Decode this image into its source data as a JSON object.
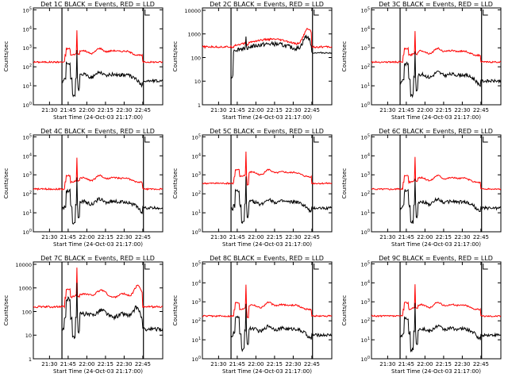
{
  "colors": {
    "events": "#000000",
    "lld": "#ff0000",
    "axes": "#000000",
    "background": "#ffffff"
  },
  "xticks": [
    "21:30",
    "21:45",
    "22:00",
    "22:15",
    "22:30",
    "22:45"
  ],
  "xlabel": "Start Time (24-Oct-03 21:17:00)",
  "ylabel": "Counts/sec",
  "x_markers_minutes": [
    23.0,
    88.5
  ],
  "chart_data": [
    {
      "type": "line",
      "title": "Det 1C BLACK = Events, RED = LLD",
      "yticks": [
        "10^0",
        "10^1",
        "10^2",
        "10^3",
        "10^4",
        "10^5"
      ],
      "ylim_log10": [
        0,
        5.1
      ],
      "profile": "flare",
      "series": [
        {
          "name": "Events",
          "color": "#000000"
        },
        {
          "name": "LLD",
          "color": "#ff0000"
        }
      ]
    },
    {
      "type": "line",
      "title": "Det 2C BLACK = Events, RED = LLD",
      "yticks": [
        "1",
        "10",
        "100",
        "1000",
        "10000"
      ],
      "ylim_log10": [
        0,
        4.1
      ],
      "profile": "det2",
      "series": [
        {
          "name": "Events",
          "color": "#000000"
        },
        {
          "name": "LLD",
          "color": "#ff0000"
        }
      ]
    },
    {
      "type": "line",
      "title": "Det 3C BLACK = Events, RED = LLD",
      "yticks": [
        "10^0",
        "10^1",
        "10^2",
        "10^3",
        "10^4",
        "10^5"
      ],
      "ylim_log10": [
        0,
        5.1
      ],
      "profile": "flare",
      "series": [
        {
          "name": "Events",
          "color": "#000000"
        },
        {
          "name": "LLD",
          "color": "#ff0000"
        }
      ]
    },
    {
      "type": "line",
      "title": "Det 4C BLACK = Events, RED = LLD",
      "yticks": [
        "10^0",
        "10^1",
        "10^2",
        "10^3",
        "10^4",
        "10^5"
      ],
      "ylim_log10": [
        0,
        5.1
      ],
      "profile": "flare",
      "series": [
        {
          "name": "Events",
          "color": "#000000"
        },
        {
          "name": "LLD",
          "color": "#ff0000"
        }
      ]
    },
    {
      "type": "line",
      "title": "Det 5C BLACK = Events, RED = LLD",
      "yticks": [
        "10^0",
        "10^1",
        "10^2",
        "10^3",
        "10^4",
        "10^5"
      ],
      "ylim_log10": [
        0,
        5.1
      ],
      "profile": "det5",
      "series": [
        {
          "name": "Events",
          "color": "#000000"
        },
        {
          "name": "LLD",
          "color": "#ff0000"
        }
      ]
    },
    {
      "type": "line",
      "title": "Det 6C BLACK = Events, RED = LLD",
      "yticks": [
        "10^0",
        "10^1",
        "10^2",
        "10^3",
        "10^4",
        "10^5"
      ],
      "ylim_log10": [
        0,
        5.1
      ],
      "profile": "flare",
      "series": [
        {
          "name": "Events",
          "color": "#000000"
        },
        {
          "name": "LLD",
          "color": "#ff0000"
        }
      ]
    },
    {
      "type": "line",
      "title": "Det 7C BLACK = Events, RED = LLD",
      "yticks": [
        "1",
        "10",
        "100",
        "1000",
        "10000"
      ],
      "ylim_log10": [
        0,
        4.1
      ],
      "profile": "det7",
      "series": [
        {
          "name": "Events",
          "color": "#000000"
        },
        {
          "name": "LLD",
          "color": "#ff0000"
        }
      ]
    },
    {
      "type": "line",
      "title": "Det 8C BLACK = Events, RED = LLD",
      "yticks": [
        "10^0",
        "10^1",
        "10^2",
        "10^3",
        "10^4",
        "10^5"
      ],
      "ylim_log10": [
        0,
        5.1
      ],
      "profile": "det8",
      "series": [
        {
          "name": "Events",
          "color": "#000000"
        },
        {
          "name": "LLD",
          "color": "#ff0000"
        }
      ]
    },
    {
      "type": "line",
      "title": "Det 9C BLACK = Events, RED = LLD",
      "yticks": [
        "10^0",
        "10^1",
        "10^2",
        "10^3",
        "10^4",
        "10^5"
      ],
      "ylim_log10": [
        0,
        5.1
      ],
      "profile": "flare",
      "series": [
        {
          "name": "Events",
          "color": "#000000"
        },
        {
          "name": "LLD",
          "color": "#ff0000"
        }
      ]
    }
  ]
}
